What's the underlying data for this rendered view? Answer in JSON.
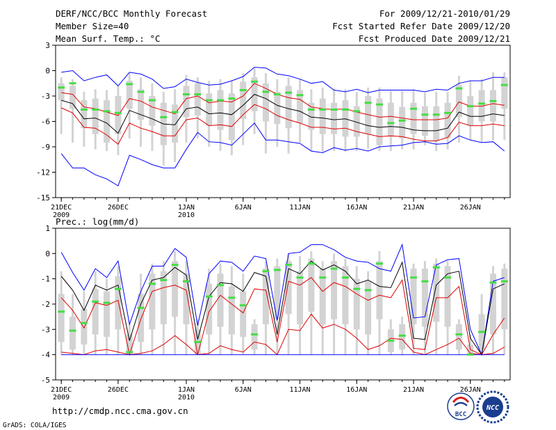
{
  "header": {
    "title": "DERF/NCC/BCC Monthly Forecast",
    "member_size": "Member Size=40",
    "variable": "Mean Surf. Temp.: °C",
    "period": "For 2009/12/21-2010/01/29",
    "refer_date": "Fcst Started Refer Date 2009/12/20",
    "produced_date": "Fcst Produced Date 2009/12/21"
  },
  "footer": {
    "url": "http://cmdp.ncc.cma.gov.cn",
    "credit": "GrADS: COLA/IGES",
    "logo_bcc_text": "BCC",
    "logo_ncc_text": "NCC"
  },
  "colors": {
    "spread": "#0000ff",
    "band": "#dd0000",
    "mean": "#000000",
    "box": "#d3d3d3",
    "median": "#44dd44"
  },
  "chart_data": [
    {
      "type": "line",
      "title": "Mean Surf. Temp.: °C",
      "x": [
        1,
        2,
        3,
        4,
        5,
        6,
        7,
        8,
        9,
        10,
        11,
        12,
        13,
        14,
        15,
        16,
        17,
        18,
        19,
        20,
        21,
        22,
        23,
        24,
        25,
        26,
        27,
        28,
        29,
        30,
        31,
        32,
        33,
        34,
        35,
        36,
        37,
        38,
        39,
        40
      ],
      "xlim": [
        0.5,
        40.5
      ],
      "ylim": [
        -15,
        3
      ],
      "yticks": [
        3,
        0,
        -3,
        -6,
        -9,
        -12,
        -15
      ],
      "xtick_positions": [
        1,
        6,
        12,
        17,
        22,
        27,
        32,
        37
      ],
      "xtick_labels": [
        "21DEC",
        "26DEC",
        "1JAN",
        "6JAN",
        "11JAN",
        "16JAN",
        "21JAN",
        "26JAN"
      ],
      "xtick_sublabels": [
        {
          "x": 1,
          "label": "2009"
        },
        {
          "x": 12,
          "label": "2010"
        }
      ],
      "series": [
        {
          "name": "max",
          "color": "blue",
          "values": [
            -0.2,
            0,
            -1.2,
            -0.8,
            -0.5,
            -1.8,
            -0.2,
            -0.4,
            -1,
            -2.1,
            -1.9,
            -1,
            -1.4,
            -1.7,
            -1.6,
            -1.2,
            -0.7,
            0.4,
            0.3,
            -0.4,
            -0.6,
            -1,
            -1.5,
            -1.3,
            -2.3,
            -2.5,
            -2.2,
            -2.6,
            -2.3,
            -2.3,
            -2.3,
            -2.3,
            -2.5,
            -2.2,
            -2.3,
            -1.5,
            -1.2,
            -1.2,
            -0.8,
            -0.8
          ]
        },
        {
          "name": "upper",
          "color": "red",
          "values": [
            -2.6,
            -2.8,
            -4.3,
            -4.5,
            -4.9,
            -5.3,
            -3.3,
            -3.6,
            -4.3,
            -4.7,
            -5.1,
            -3.3,
            -3,
            -3.8,
            -3.6,
            -3.7,
            -3,
            -1.5,
            -2.1,
            -2.8,
            -3.2,
            -3.4,
            -4.3,
            -4.5,
            -4.6,
            -4.5,
            -4.9,
            -5.2,
            -5.5,
            -5.4,
            -5.6,
            -5.8,
            -5.8,
            -5.8,
            -5.6,
            -3.7,
            -4.2,
            -4.2,
            -3.9,
            -4.1
          ]
        },
        {
          "name": "mean",
          "color": "black",
          "values": [
            -3.5,
            -3.9,
            -5.7,
            -5.6,
            -6.2,
            -7.4,
            -4.7,
            -5.2,
            -5.7,
            -6.3,
            -6.4,
            -4.5,
            -4.3,
            -5.1,
            -5,
            -5.2,
            -4.1,
            -2.8,
            -3.3,
            -4.1,
            -4.5,
            -4.8,
            -5.5,
            -5.6,
            -5.8,
            -5.7,
            -6.1,
            -6.5,
            -6.7,
            -6.6,
            -6.7,
            -7,
            -7.1,
            -7.1,
            -6.8,
            -4.9,
            -5.4,
            -5.4,
            -5.1,
            -5.3
          ]
        },
        {
          "name": "lower",
          "color": "red",
          "values": [
            -4.4,
            -5,
            -6.7,
            -6.8,
            -7.6,
            -8.7,
            -6.2,
            -6.8,
            -7.2,
            -7.7,
            -7.7,
            -5.8,
            -5.6,
            -6.5,
            -6.4,
            -6.6,
            -5.2,
            -4,
            -4.5,
            -5.3,
            -5.8,
            -6.2,
            -6.7,
            -6.7,
            -6.9,
            -6.8,
            -7.2,
            -7.5,
            -7.8,
            -7.7,
            -7.8,
            -8.1,
            -8.3,
            -8.3,
            -7.9,
            -6.1,
            -6.5,
            -6.5,
            -6.3,
            -6.5
          ]
        },
        {
          "name": "min",
          "color": "blue",
          "values": [
            -9.8,
            -11.5,
            -11.5,
            -12.3,
            -12.8,
            -13.6,
            -10,
            -10.5,
            -11.1,
            -11.5,
            -11.5,
            -9.3,
            -7.3,
            -8.4,
            -8.5,
            -8.8,
            -7.5,
            -6.2,
            -8.2,
            -8.2,
            -8.4,
            -8.6,
            -9.5,
            -9.7,
            -9.1,
            -9.4,
            -9.2,
            -9.5,
            -9,
            -8.9,
            -8.8,
            -8.5,
            -8.4,
            -8.7,
            -8.6,
            -7.7,
            -8.2,
            -8.5,
            -8.4,
            -9.5
          ]
        }
      ],
      "boxes": {
        "median": [
          -2,
          -1.5,
          -4.6,
          -4.6,
          -4.8,
          -5,
          -1.6,
          -2.5,
          -3.5,
          -5.5,
          -4.9,
          -2.8,
          -2.8,
          -3.5,
          -3.5,
          -3.3,
          -2.3,
          -1.3,
          -2.5,
          -2.8,
          -2.6,
          -2.9,
          -4.6,
          -4.6,
          -4.6,
          -4.6,
          -4.8,
          -3.8,
          -4,
          -6.2,
          -5.9,
          -4.5,
          -5.2,
          -5.2,
          -5,
          -2.1,
          -4.2,
          -3.9,
          -3.6,
          -1.7
        ],
        "box_high": [
          -1.5,
          -1.8,
          -3.5,
          -3.3,
          -3.5,
          -3,
          -1.2,
          -2.2,
          -3,
          -3.8,
          -4,
          -1.8,
          -1.5,
          -2.7,
          -2.3,
          -2.7,
          -1.3,
          -0.8,
          -1.5,
          -2.5,
          -1.8,
          -2.3,
          -3.8,
          -3.3,
          -3.8,
          -3.5,
          -4.2,
          -3,
          -3.3,
          -3.8,
          -4.3,
          -3.8,
          -4.2,
          -4.2,
          -3.8,
          -1.7,
          -3,
          -2.3,
          -2.3,
          -0.8
        ],
        "box_low": [
          -3.5,
          -4.5,
          -6.8,
          -7.5,
          -8.5,
          -7.5,
          -4.5,
          -5.8,
          -6.5,
          -8.8,
          -8.5,
          -5.5,
          -5.3,
          -6.5,
          -7,
          -8.2,
          -5.7,
          -4.8,
          -6,
          -6.3,
          -6.8,
          -6.2,
          -7,
          -7.5,
          -7.5,
          -7.8,
          -7.8,
          -7.5,
          -8.8,
          -7.8,
          -8,
          -7.5,
          -7.7,
          -8.3,
          -8,
          -5.5,
          -6.5,
          -6,
          -6,
          -4.5
        ],
        "whisker_high": [
          -0.8,
          -1,
          -2.5,
          -2.2,
          -2.3,
          -1.8,
          -0.3,
          -0.8,
          -1.5,
          -2.5,
          -2.2,
          -0.5,
          -0.8,
          -1.2,
          -1,
          -1.2,
          -0.3,
          0.3,
          -0.3,
          -1,
          -0.8,
          -1,
          -2.2,
          -2,
          -2.2,
          -2.2,
          -2.5,
          -2,
          -2,
          -2.4,
          -2.4,
          -2.2,
          -2.6,
          -2.5,
          -2.5,
          -0.6,
          -1.2,
          -1,
          -0.2,
          -0.2
        ],
        "whisker_low": [
          -7.5,
          -8.5,
          -9,
          -9.3,
          -9.5,
          -10,
          -8,
          -9,
          -9.5,
          -11.2,
          -10.8,
          -8.5,
          -8,
          -9,
          -9.5,
          -10,
          -8.8,
          -7.5,
          -9.8,
          -9,
          -9.8,
          -8.5,
          -9.5,
          -9.6,
          -9.5,
          -9.6,
          -9.5,
          -9.2,
          -9.5,
          -9.5,
          -9.3,
          -9.3,
          -8.8,
          -9.5,
          -9.3,
          -8.5,
          -8.2,
          -8.5,
          -8.2,
          -8.2
        ]
      }
    },
    {
      "type": "line",
      "title": "Prec.: log(mm/d)",
      "x": [
        1,
        2,
        3,
        4,
        5,
        6,
        7,
        8,
        9,
        10,
        11,
        12,
        13,
        14,
        15,
        16,
        17,
        18,
        19,
        20,
        21,
        22,
        23,
        24,
        25,
        26,
        27,
        28,
        29,
        30,
        31,
        32,
        33,
        34,
        35,
        36,
        37,
        38,
        39,
        40
      ],
      "xlim": [
        0.5,
        40.5
      ],
      "ylim": [
        -5,
        1
      ],
      "yticks": [
        1,
        0,
        -1,
        -2,
        -3,
        -4,
        -5
      ],
      "xtick_positions": [
        1,
        6,
        12,
        17,
        22,
        27,
        32,
        37
      ],
      "xtick_labels": [
        "21DEC",
        "26DEC",
        "1JAN",
        "6JAN",
        "11JAN",
        "16JAN",
        "21JAN",
        "26JAN"
      ],
      "xtick_sublabels": [
        {
          "x": 1,
          "label": "2009"
        },
        {
          "x": 12,
          "label": "2010"
        }
      ],
      "series": [
        {
          "name": "max",
          "color": "blue",
          "values": [
            0.05,
            -0.75,
            -1.45,
            -0.6,
            -0.95,
            -0.3,
            -2.8,
            -1.5,
            -0.5,
            -0.5,
            0.2,
            -0.15,
            -2.85,
            -0.8,
            -0.3,
            -0.35,
            -0.7,
            -0.1,
            -0.2,
            -2.65,
            0,
            0.05,
            0.35,
            0.35,
            0.15,
            -0.15,
            -0.3,
            -0.35,
            -0.6,
            -0.7,
            0.35,
            -2.55,
            -2.5,
            -0.45,
            -0.25,
            -0.2,
            -3.0,
            -4.0,
            -1.1,
            -0.95
          ]
        },
        {
          "name": "upper",
          "color": "black",
          "values": [
            -0.9,
            -1.45,
            -2.25,
            -1.25,
            -1.45,
            -1.25,
            -3.45,
            -2.0,
            -1.05,
            -0.95,
            -0.55,
            -0.85,
            -3.4,
            -1.7,
            -1.15,
            -1.2,
            -1.5,
            -0.75,
            -0.9,
            -3.2,
            -0.6,
            -0.8,
            -0.3,
            -0.65,
            -0.45,
            -0.7,
            -1.2,
            -1.05,
            -1.3,
            -1.35,
            -0.35,
            -3.35,
            -3.4,
            -1.25,
            -0.8,
            -0.7,
            -3.35,
            -4.0,
            -1.4,
            -1.2
          ]
        },
        {
          "name": "mean",
          "color": "red",
          "values": [
            -1.75,
            -2.25,
            -2.95,
            -1.95,
            -2.05,
            -1.85,
            -4.0,
            -2.6,
            -1.5,
            -1.35,
            -1.25,
            -1.45,
            -4.0,
            -2.3,
            -1.65,
            -2.0,
            -2.35,
            -1.4,
            -1.45,
            -3.5,
            -1.1,
            -1.25,
            -0.95,
            -1.5,
            -1.15,
            -1.3,
            -1.6,
            -1.85,
            -1.65,
            -1.75,
            -1.05,
            -3.75,
            -3.8,
            -1.75,
            -1.75,
            -1.3,
            -3.8,
            -4.0,
            -3.2,
            -2.55
          ]
        },
        {
          "name": "lower",
          "color": "red",
          "values": [
            -3.9,
            -3.95,
            -4.0,
            -3.85,
            -3.8,
            -3.9,
            -4.0,
            -3.95,
            -3.85,
            -3.6,
            -3.25,
            -3.6,
            -4.0,
            -3.95,
            -3.65,
            -3.8,
            -3.9,
            -3.5,
            -3.6,
            -4.0,
            -3.0,
            -3.05,
            -2.4,
            -2.95,
            -2.8,
            -3.0,
            -3.35,
            -3.8,
            -3.65,
            -3.35,
            -3.4,
            -3.9,
            -4.0,
            -3.8,
            -3.6,
            -3.35,
            -3.95,
            -4.0,
            -3.95,
            -3.7
          ]
        },
        {
          "name": "min",
          "color": "blue",
          "values": [
            -4,
            -4,
            -4,
            -4,
            -4,
            -4,
            -4,
            -4,
            -4,
            -4,
            -4,
            -4,
            -4,
            -4,
            -4,
            -4,
            -4,
            -4,
            -4,
            -4,
            -4,
            -4,
            -4,
            -4,
            -4,
            -4,
            -4,
            -4,
            -4,
            -4,
            -4,
            -4,
            -4,
            -4,
            -4,
            -4,
            -4,
            -4,
            -4,
            -4
          ]
        }
      ],
      "boxes": {
        "median": [
          -2.3,
          -3.05,
          -2.75,
          -1.9,
          -1.95,
          -1.4,
          -3.9,
          -2.15,
          -1.2,
          -1.05,
          -0.45,
          -1.1,
          -3.5,
          -1.7,
          -1.25,
          -1.75,
          -2.05,
          -3.2,
          -0.7,
          -0.65,
          -0.45,
          -0.95,
          -0.4,
          -0.95,
          -0.6,
          -0.95,
          -1.4,
          -1.45,
          -0.4,
          -3.45,
          -3.25,
          -0.95,
          -1.1,
          -0.55,
          -0.95,
          -3.2,
          -4.0,
          -3.1,
          -1.15,
          -1.1
        ],
        "box_high": [
          -1.6,
          -2.5,
          -2.2,
          -1.4,
          -1.5,
          -0.9,
          -3.2,
          -1.6,
          -0.8,
          -0.7,
          -0.3,
          -0.8,
          -3.0,
          -1.2,
          -0.8,
          -1.3,
          -1.5,
          -2.8,
          -0.6,
          -0.5,
          -0.3,
          -0.7,
          -0.2,
          -0.6,
          -0.3,
          -0.5,
          -1.0,
          -1.1,
          -0.3,
          -3.0,
          -2.8,
          -0.6,
          -0.6,
          -0.4,
          -0.5,
          -2.8,
          -3.6,
          -2.4,
          -0.8,
          -0.6
        ],
        "box_high_note": "upper edge of grey box",
        "box_low": [
          -3.5,
          -3.8,
          -3.6,
          -3.2,
          -3.3,
          -3.0,
          -4.0,
          -3.5,
          -3.0,
          -2.8,
          -2.5,
          -2.8,
          -4.0,
          -3.2,
          -2.9,
          -3.2,
          -3.3,
          -3.8,
          -2.8,
          -2.6,
          -2.4,
          -2.8,
          -2.3,
          -2.8,
          -2.6,
          -2.8,
          -3.0,
          -3.2,
          -2.6,
          -3.9,
          -3.8,
          -2.8,
          -2.9,
          -2.7,
          -2.9,
          -3.8,
          -4.0,
          -3.8,
          -3.2,
          -3.0
        ],
        "whisker_high": [
          -0.7,
          -1.6,
          -1.5,
          -0.7,
          -1.0,
          -0.5,
          -2.8,
          -0.8,
          -0.4,
          -0.3,
          0.1,
          -0.3,
          -2.6,
          -0.6,
          -0.4,
          -0.5,
          -0.8,
          -2.6,
          -0.3,
          -0.2,
          0.0,
          -0.1,
          0.1,
          -0.3,
          0.0,
          -0.2,
          -0.5,
          -0.7,
          0.1,
          -2.6,
          -2.5,
          -0.4,
          -0.3,
          -0.2,
          -0.3,
          -2.6,
          -3.2,
          -1.6,
          -0.5,
          -0.4
        ],
        "whisker_low": [
          -4,
          -4,
          -4,
          -4,
          -4,
          -4,
          -4,
          -4,
          -4,
          -4,
          -4,
          -4,
          -4,
          -4,
          -4,
          -4,
          -4,
          -4,
          -4,
          -4,
          -4,
          -4,
          -4,
          -4,
          -4,
          -4,
          -4,
          -4,
          -4,
          -4,
          -4,
          -4,
          -4,
          -4,
          -4,
          -4,
          -4,
          -4,
          -4,
          -4
        ]
      }
    }
  ]
}
